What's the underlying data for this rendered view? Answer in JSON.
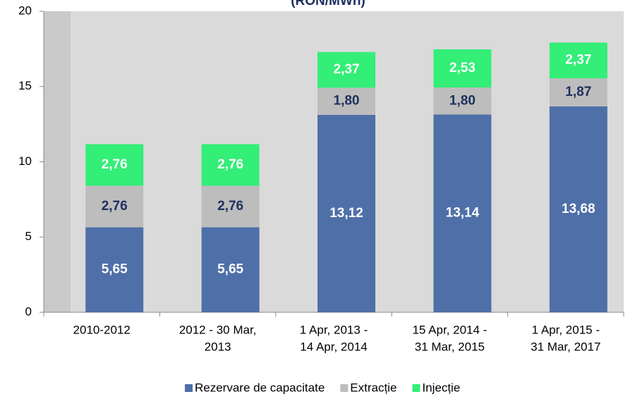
{
  "chart_data": {
    "type": "stacked_bar",
    "title": "(RON/MWh)",
    "categories": [
      [
        "2010-2012"
      ],
      [
        "2012 - 30 Mar,",
        "2013"
      ],
      [
        "1 Apr, 2013 -",
        "14 Apr, 2014"
      ],
      [
        "15 Apr, 2014 -",
        "31 Mar, 2015"
      ],
      [
        "1 Apr, 2015 -",
        "31 Mar, 2017"
      ]
    ],
    "series": [
      {
        "name": "Rezervare de capacitate",
        "color": "#4f6fa8",
        "label_color": "#ffffff",
        "values": [
          5.65,
          5.65,
          13.12,
          13.14,
          13.68
        ],
        "value_labels": [
          "5,65",
          "5,65",
          "13,12",
          "13,14",
          "13,68"
        ]
      },
      {
        "name": "Extracție",
        "color": "#bdbdbd",
        "label_color": "#1f3060",
        "values": [
          2.76,
          2.76,
          1.8,
          1.8,
          1.87
        ],
        "value_labels": [
          "2,76",
          "2,76",
          "1,80",
          "1,80",
          "1,87"
        ]
      },
      {
        "name": "Injecție",
        "color": "#33ee77",
        "label_color": "#ffffff",
        "values": [
          2.76,
          2.76,
          2.37,
          2.53,
          2.37
        ],
        "value_labels": [
          "2,76",
          "2,76",
          "2,37",
          "2,53",
          "2,37"
        ]
      }
    ],
    "ylim": [
      0,
      20
    ],
    "yticks": [
      0,
      5,
      10,
      15,
      20
    ],
    "legend": "bottom"
  }
}
